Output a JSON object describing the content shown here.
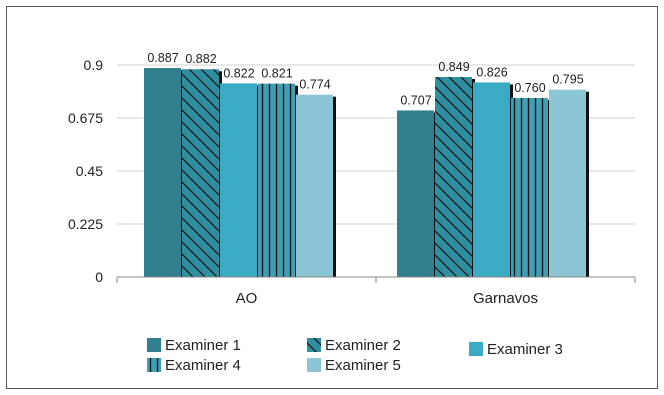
{
  "chart_data": {
    "type": "bar",
    "categories": [
      "AO",
      "Garnavos"
    ],
    "series": [
      {
        "name": "Examiner 1",
        "values": [
          0.887,
          0.707
        ],
        "labels": [
          "0.887",
          "0.707"
        ],
        "color": "#2f7f8f",
        "pattern": "solid"
      },
      {
        "name": "Examiner 2",
        "values": [
          0.882,
          0.849
        ],
        "labels": [
          "0.882",
          "0.849"
        ],
        "color": "#2f8fa0",
        "pattern": "diagonal"
      },
      {
        "name": "Examiner 3",
        "values": [
          0.822,
          0.826
        ],
        "labels": [
          "0.822",
          "0.826"
        ],
        "color": "#3aabc4",
        "pattern": "solid"
      },
      {
        "name": "Examiner 4",
        "values": [
          0.821,
          0.76
        ],
        "labels": [
          "0.821",
          "0.760"
        ],
        "color": "#3f9fb5",
        "pattern": "vertical"
      },
      {
        "name": "Examiner 5",
        "values": [
          0.774,
          0.795
        ],
        "labels": [
          "0.774",
          "0.795"
        ],
        "color": "#8cc6d4",
        "pattern": "solid"
      }
    ],
    "y_ticks": [
      "0",
      "0.225",
      "0.45",
      "0.675",
      "0.9"
    ],
    "ylim": [
      0,
      0.9
    ],
    "grid": true,
    "legend_position": "bottom",
    "title": "",
    "xlabel": "",
    "ylabel": ""
  }
}
